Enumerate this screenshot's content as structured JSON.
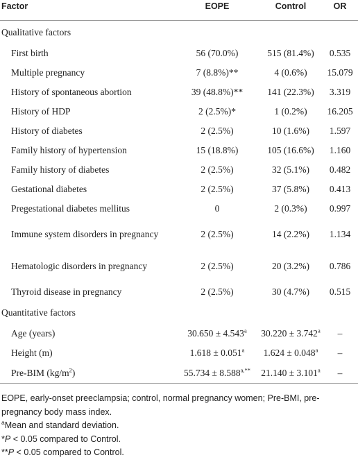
{
  "table": {
    "header": [
      "Factor",
      "EOPE",
      "Control",
      "OR"
    ],
    "sections": [
      {
        "title": "Qualitative factors",
        "rows": [
          [
            "First birth",
            "56 (70.0%)",
            "515 (81.4%)",
            "0.535"
          ],
          [
            "Multiple pregnancy",
            "7 (8.8%)**",
            "4 (0.6%)",
            "15.079"
          ],
          [
            "History of spontaneous abortion",
            "39 (48.8%)**",
            "141 (22.3%)",
            "3.319"
          ],
          [
            "History of HDP",
            "2 (2.5%)*",
            "1 (0.2%)",
            "16.205"
          ],
          [
            "History of diabetes",
            "2 (2.5%)",
            "10 (1.6%)",
            "1.597"
          ],
          [
            "Family history of hypertension",
            "15 (18.8%)",
            "105 (16.6%)",
            "1.160"
          ],
          [
            "Family history of diabetes",
            "2 (2.5%)",
            "32 (5.1%)",
            "0.482"
          ],
          [
            "Gestational diabetes",
            "2 (2.5%)",
            "37 (5.8%)",
            "0.413"
          ],
          [
            "Pregestational diabetes mellitus",
            "0",
            "2 (0.3%)",
            "0.997"
          ],
          [
            "Immune system disorders in pregnancy",
            "2 (2.5%)",
            "14 (2.2%)",
            "1.134"
          ],
          [
            "Hematologic disorders in pregnancy",
            "2 (2.5%)",
            "20 (3.2%)",
            "0.786"
          ],
          [
            "Thyroid disease in pregnancy",
            "2 (2.5%)",
            "30 (4.7%)",
            "0.515"
          ]
        ]
      },
      {
        "title": "Quantitative factors",
        "rows": [
          [
            "Age (years)",
            {
              "text": "30.650 ± 4.543",
              "sup": "a"
            },
            {
              "text": "30.220 ± 3.742",
              "sup": "a"
            },
            "–"
          ],
          [
            "Height (m)",
            {
              "text": "1.618 ± 0.051",
              "sup": "a"
            },
            {
              "text": "1.624 ± 0.048",
              "sup": "a"
            },
            "–"
          ],
          [
            {
              "text": "Pre-BIM (kg/m",
              "sup": "2",
              "after": ")"
            },
            {
              "text": "55.734 ± 8.588",
              "sup": "a,**"
            },
            {
              "text": "21.140 ± 3.101",
              "sup": "a"
            },
            "–"
          ]
        ]
      }
    ]
  },
  "footnotes": [
    "EOPE, early-onset preeclampsia; control, normal pregnancy women; Pre-BMI, pre-pregnancy body mass index.",
    {
      "sup": "a",
      "text": "Mean and standard deviation."
    },
    {
      "mark": "*",
      "italic": "P",
      "text": " < 0.05 compared to Control."
    },
    {
      "mark": "**",
      "italic": "P",
      "text": " < 0.05 compared to Control."
    }
  ]
}
